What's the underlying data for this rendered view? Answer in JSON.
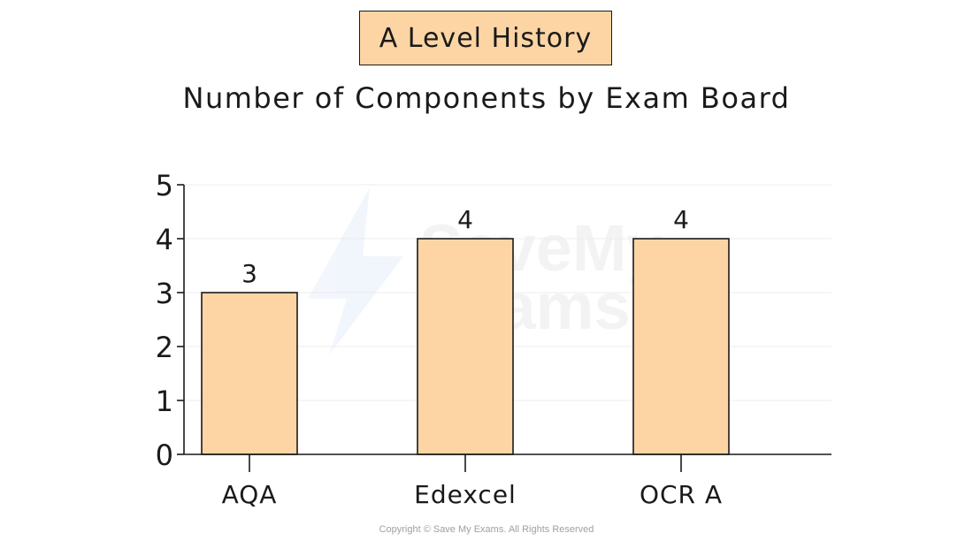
{
  "header": {
    "title": "A Level History",
    "subtitle": "Number of Components by Exam Board"
  },
  "chart_data": {
    "type": "bar",
    "title": "Number of Components by Exam Board",
    "categories": [
      "AQA",
      "Edexcel",
      "OCR A"
    ],
    "values": [
      3,
      4,
      4
    ],
    "data_labels": [
      "3",
      "4",
      "4"
    ],
    "xlabel": "",
    "ylabel": "",
    "ylim": [
      0,
      5
    ],
    "yticks": [
      "0",
      "1",
      "2",
      "3",
      "4",
      "5"
    ],
    "grid": true,
    "legend": "none",
    "bar_color": "#fdd5a4",
    "edge_color": "#1a1a1a"
  },
  "watermark": {
    "line1": "SaveMy",
    "line2": "Exams"
  },
  "footer": {
    "copyright": "Copyright © Save My Exams. All Rights Reserved"
  }
}
